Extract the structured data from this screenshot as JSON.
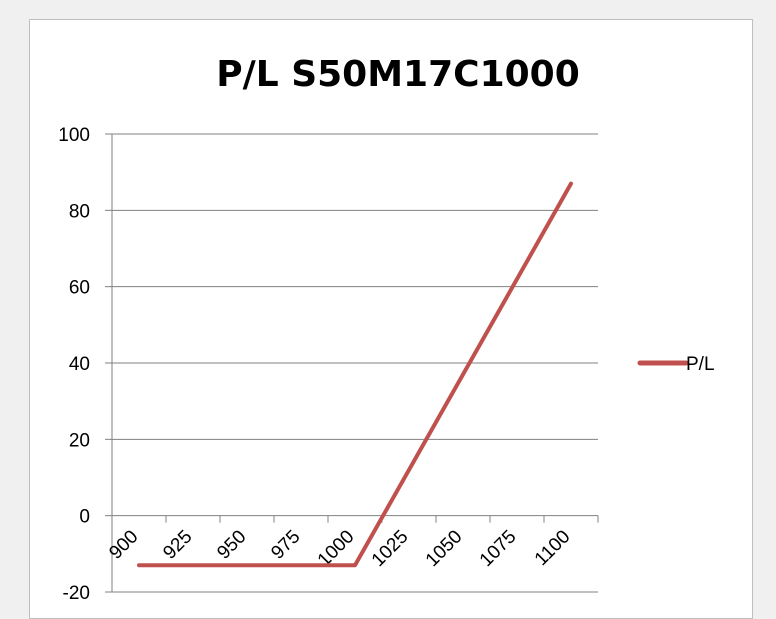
{
  "chart_data": {
    "type": "line",
    "title": "P/L S50M17C1000",
    "xlabel": "",
    "ylabel": "",
    "categories": [
      "900",
      "925",
      "950",
      "975",
      "1000",
      "1025",
      "1050",
      "1075",
      "1100"
    ],
    "series": [
      {
        "name": "P/L",
        "x": [
          900,
          1000,
          1100
        ],
        "values": [
          -13,
          -13,
          87
        ]
      }
    ],
    "ylim": [
      -20,
      100
    ],
    "yticks": [
      "-20",
      "0",
      "20",
      "40",
      "60",
      "80",
      "100"
    ],
    "grid": true,
    "legend": "right",
    "colors": {
      "series": "#c0504d",
      "grid": "#808080",
      "axis": "#808080"
    }
  }
}
